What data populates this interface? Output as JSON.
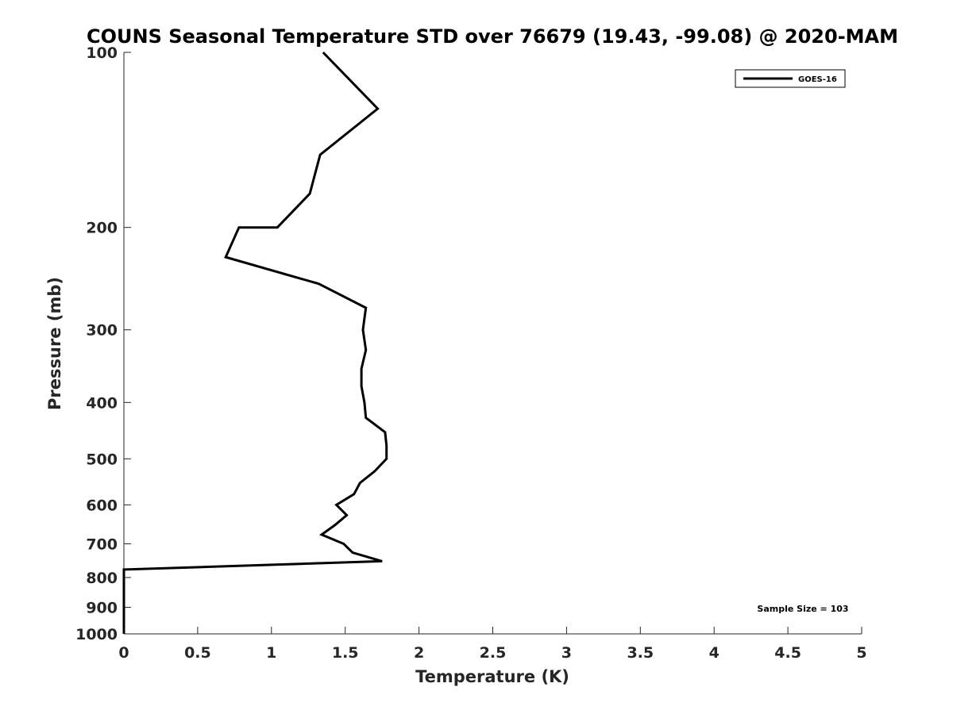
{
  "chart_data": {
    "type": "line",
    "title": "COUNS Seasonal Temperature STD over 76679 (19.43, -99.08) @ 2020-MAM",
    "xlabel": "Temperature (K)",
    "ylabel": "Pressure (mb)",
    "xlim": [
      0,
      5
    ],
    "ylim": [
      1000,
      100
    ],
    "yscale": "log",
    "x_ticks": [
      "0",
      "0.5",
      "1",
      "1.5",
      "2",
      "2.5",
      "3",
      "3.5",
      "4",
      "4.5",
      "5"
    ],
    "y_ticks": [
      "100",
      "200",
      "300",
      "400",
      "500",
      "600",
      "700",
      "800",
      "900",
      "1000"
    ],
    "grid": false,
    "legend": {
      "position": "top-right",
      "entries": [
        "GOES-16"
      ]
    },
    "annotation": "Sample Size = 103",
    "series": [
      {
        "name": "GOES-16",
        "color": "#000000",
        "points": [
          {
            "x": 1.35,
            "y": 100
          },
          {
            "x": 1.72,
            "y": 125
          },
          {
            "x": 1.33,
            "y": 150
          },
          {
            "x": 1.26,
            "y": 175
          },
          {
            "x": 1.04,
            "y": 200
          },
          {
            "x": 0.78,
            "y": 200
          },
          {
            "x": 0.69,
            "y": 225
          },
          {
            "x": 1.32,
            "y": 250
          },
          {
            "x": 1.64,
            "y": 275
          },
          {
            "x": 1.62,
            "y": 300
          },
          {
            "x": 1.64,
            "y": 325
          },
          {
            "x": 1.61,
            "y": 350
          },
          {
            "x": 1.61,
            "y": 375
          },
          {
            "x": 1.63,
            "y": 400
          },
          {
            "x": 1.64,
            "y": 425
          },
          {
            "x": 1.77,
            "y": 450
          },
          {
            "x": 1.78,
            "y": 475
          },
          {
            "x": 1.78,
            "y": 500
          },
          {
            "x": 1.7,
            "y": 525
          },
          {
            "x": 1.6,
            "y": 550
          },
          {
            "x": 1.56,
            "y": 575
          },
          {
            "x": 1.44,
            "y": 600
          },
          {
            "x": 1.51,
            "y": 625
          },
          {
            "x": 1.43,
            "y": 650
          },
          {
            "x": 1.34,
            "y": 675
          },
          {
            "x": 1.49,
            "y": 700
          },
          {
            "x": 1.55,
            "y": 725
          },
          {
            "x": 1.75,
            "y": 750
          },
          {
            "x": 0.0,
            "y": 775
          },
          {
            "x": 0.0,
            "y": 1000
          }
        ]
      }
    ]
  }
}
